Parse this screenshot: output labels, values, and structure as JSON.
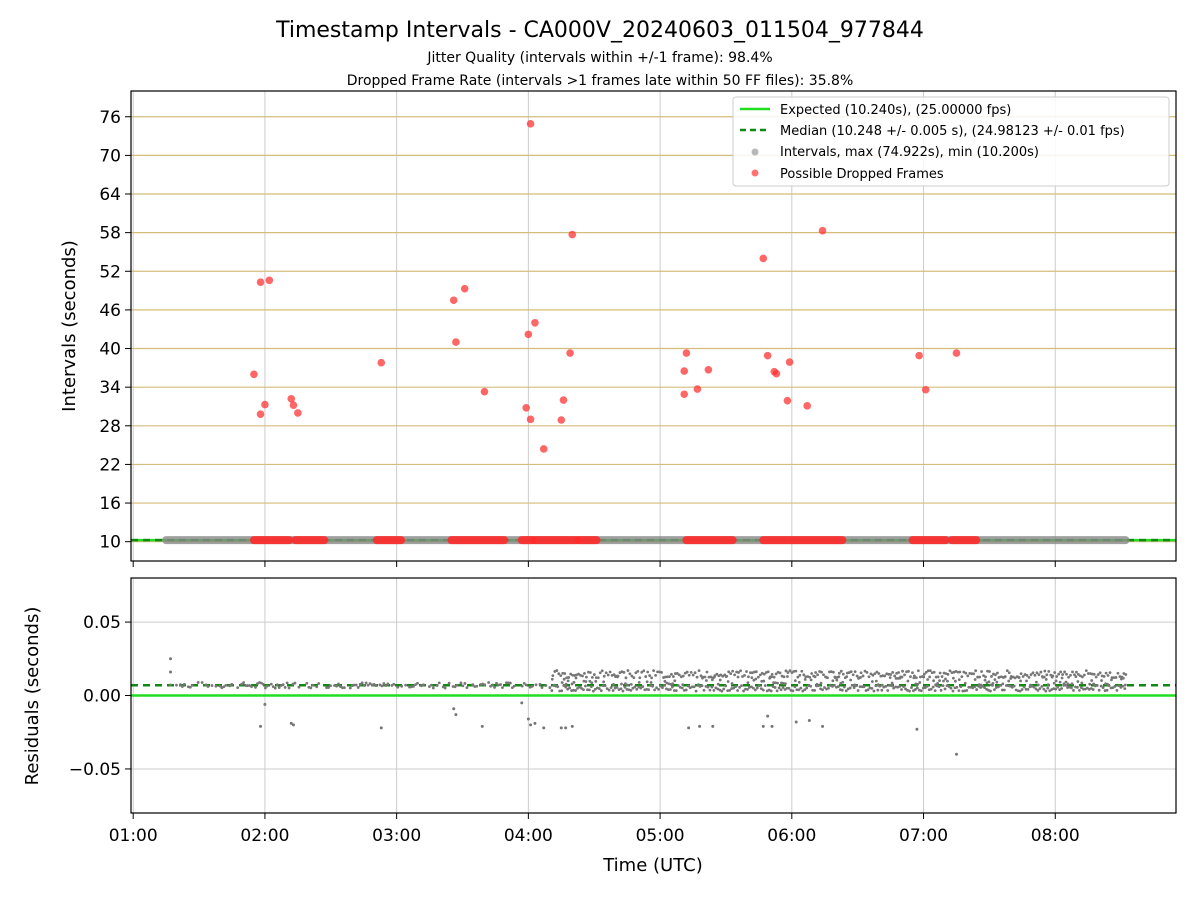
{
  "chart_data": [
    {
      "type": "scatter",
      "title": "Timestamp Intervals - CA000V_20240603_011504_977844",
      "subtitle_lines": [
        "Jitter Quality (intervals within +/-1 frame): 98.4%",
        "Dropped Frame Rate (intervals >1 frames late within 50 FF files): 35.8%"
      ],
      "xlabel": "",
      "ylabel": "Intervals (seconds)",
      "x_unit": "time (UTC, HH:MM)",
      "xlim": [
        "00:59",
        "08:55"
      ],
      "ylim": [
        7,
        80
      ],
      "y_ticks": [
        10,
        16,
        22,
        28,
        34,
        40,
        46,
        52,
        58,
        64,
        70,
        76
      ],
      "grid": true,
      "legend_position": "top-right",
      "legend": [
        {
          "label": "Expected (10.240s), (25.00000 fps)",
          "style": "solid-line",
          "color": "#22dd22"
        },
        {
          "label": "Median (10.248 +/- 0.005 s), (24.98123 +/- 0.01 fps)",
          "style": "dashed-line",
          "color": "#118811"
        },
        {
          "label": "Intervals, max (74.922s), min (10.200s)",
          "style": "marker",
          "color": "#888888"
        },
        {
          "label": "Possible Dropped Frames",
          "style": "marker",
          "color": "#ff4444"
        }
      ],
      "expected_value": 10.24,
      "median_value": 10.248,
      "series": [
        {
          "legend_index": 2,
          "band_value": 10.24,
          "band_range": [
            "01:15",
            "08:32"
          ]
        },
        {
          "legend_index": 3,
          "band_value": 10.24,
          "band_ranges": [
            [
              "01:55",
              "02:11"
            ],
            [
              "02:14",
              "02:27"
            ],
            [
              "02:51",
              "03:02"
            ],
            [
              "03:25",
              "03:49"
            ],
            [
              "03:57",
              "04:02"
            ],
            [
              "04:03",
              "04:22"
            ],
            [
              "04:23",
              "04:31"
            ],
            [
              "05:12",
              "05:33"
            ],
            [
              "05:47",
              "06:23"
            ],
            [
              "06:55",
              "07:10"
            ],
            [
              "07:13",
              "07:24"
            ]
          ],
          "points": [
            [
              "01:55",
              36.0
            ],
            [
              "01:58",
              29.8
            ],
            [
              "01:58",
              50.3
            ],
            [
              "02:00",
              31.3
            ],
            [
              "02:02",
              50.6
            ],
            [
              "02:12",
              32.2
            ],
            [
              "02:13",
              31.2
            ],
            [
              "02:15",
              30.0
            ],
            [
              "02:53",
              37.8
            ],
            [
              "03:26",
              47.5
            ],
            [
              "03:27",
              41.0
            ],
            [
              "03:31",
              49.3
            ],
            [
              "03:40",
              33.3
            ],
            [
              "03:59",
              30.8
            ],
            [
              "04:00",
              42.2
            ],
            [
              "04:01",
              29.0
            ],
            [
              "04:01",
              74.9
            ],
            [
              "04:03",
              44.0
            ],
            [
              "04:07",
              24.4
            ],
            [
              "04:15",
              28.9
            ],
            [
              "04:16",
              32.0
            ],
            [
              "04:19",
              39.3
            ],
            [
              "04:20",
              57.7
            ],
            [
              "05:11",
              36.5
            ],
            [
              "05:11",
              32.9
            ],
            [
              "05:12",
              39.3
            ],
            [
              "05:17",
              33.7
            ],
            [
              "05:22",
              36.7
            ],
            [
              "05:47",
              54.0
            ],
            [
              "05:49",
              38.9
            ],
            [
              "05:52",
              36.4
            ],
            [
              "05:53",
              36.1
            ],
            [
              "05:58",
              31.9
            ],
            [
              "05:59",
              37.9
            ],
            [
              "06:07",
              31.1
            ],
            [
              "06:14",
              58.3
            ],
            [
              "06:58",
              38.9
            ],
            [
              "07:01",
              33.6
            ],
            [
              "07:15",
              39.3
            ]
          ]
        }
      ]
    },
    {
      "type": "scatter",
      "xlabel": "Time (UTC)",
      "ylabel": "Residuals (seconds)",
      "xlim": [
        "00:59",
        "08:55"
      ],
      "ylim": [
        -0.08,
        0.08
      ],
      "y_ticks": [
        "0.05",
        "0.00",
        "−0.05"
      ],
      "x_ticks": [
        "01:00",
        "02:00",
        "03:00",
        "04:00",
        "05:00",
        "06:00",
        "07:00",
        "08:00"
      ],
      "grid": true,
      "expected_residual": 0.0,
      "median_residual": 0.007,
      "series": [
        {
          "points_color": "#777777",
          "outliers": [
            [
              "01:17",
              0.025
            ],
            [
              "01:17",
              0.016
            ],
            [
              "01:58",
              -0.021
            ],
            [
              "02:00",
              -0.006
            ],
            [
              "02:12",
              -0.019
            ],
            [
              "02:13",
              -0.02
            ],
            [
              "02:53",
              -0.022
            ],
            [
              "03:26",
              -0.009
            ],
            [
              "03:27",
              -0.013
            ],
            [
              "03:39",
              -0.021
            ],
            [
              "03:57",
              -0.005
            ],
            [
              "04:00",
              -0.016
            ],
            [
              "04:01",
              -0.02
            ],
            [
              "04:03",
              -0.019
            ],
            [
              "04:07",
              -0.022
            ],
            [
              "04:15",
              -0.022
            ],
            [
              "04:17",
              -0.022
            ],
            [
              "04:20",
              -0.021
            ],
            [
              "05:13",
              -0.022
            ],
            [
              "05:18",
              -0.021
            ],
            [
              "05:24",
              -0.021
            ],
            [
              "05:47",
              -0.021
            ],
            [
              "05:49",
              -0.014
            ],
            [
              "05:51",
              -0.021
            ],
            [
              "06:02",
              -0.018
            ],
            [
              "06:08",
              -0.017
            ],
            [
              "06:14",
              -0.021
            ],
            [
              "06:57",
              -0.023
            ],
            [
              "07:15",
              -0.04
            ]
          ]
        }
      ]
    }
  ]
}
